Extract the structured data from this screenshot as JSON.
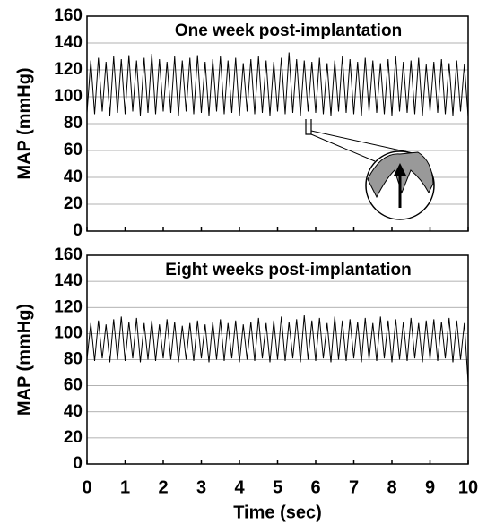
{
  "chart_data": [
    {
      "type": "line",
      "title": "One week post-implantation",
      "ylabel": "MAP (mmHg)",
      "xlim": [
        0,
        10
      ],
      "xticks": [
        0,
        1,
        2,
        3,
        4,
        5,
        6,
        7,
        8,
        9,
        10
      ],
      "ylim": [
        0,
        160
      ],
      "yticks": [
        0,
        20,
        40,
        60,
        80,
        100,
        120,
        140,
        160
      ],
      "grid": true,
      "x": [
        0,
        0.1,
        0.2,
        0.3,
        0.4,
        0.5,
        0.6,
        0.7,
        0.8,
        0.9,
        1,
        1.1,
        1.2,
        1.3,
        1.4,
        1.5,
        1.6,
        1.7,
        1.8,
        1.9,
        2,
        2.1,
        2.2,
        2.3,
        2.4,
        2.5,
        2.6,
        2.7,
        2.8,
        2.9,
        3,
        3.1,
        3.2,
        3.3,
        3.4,
        3.5,
        3.6,
        3.7,
        3.8,
        3.9,
        4,
        4.1,
        4.2,
        4.3,
        4.4,
        4.5,
        4.6,
        4.7,
        4.8,
        4.9,
        5,
        5.1,
        5.2,
        5.3,
        5.4,
        5.5,
        5.6,
        5.7,
        5.8,
        5.9,
        6,
        6.1,
        6.2,
        6.3,
        6.4,
        6.5,
        6.6,
        6.7,
        6.8,
        6.9,
        7,
        7.1,
        7.2,
        7.3,
        7.4,
        7.5,
        7.6,
        7.7,
        7.8,
        7.9,
        8,
        8.1,
        8.2,
        8.3,
        8.4,
        8.5,
        8.6,
        8.7,
        8.8,
        8.9,
        9,
        9.1,
        9.2,
        9.3,
        9.4,
        9.5,
        9.6,
        9.7,
        9.8,
        9.9,
        10
      ],
      "series": [
        {
          "color": "#000000",
          "values": [
            88,
            127,
            87,
            129,
            89,
            126,
            86,
            130,
            88,
            128,
            87,
            131,
            89,
            127,
            86,
            129,
            88,
            132,
            87,
            128,
            89,
            126,
            88,
            130,
            86,
            127,
            89,
            129,
            87,
            131,
            88,
            126,
            86,
            128,
            89,
            130,
            87,
            127,
            88,
            129,
            86,
            125,
            89,
            128,
            87,
            130,
            88,
            127,
            86,
            126,
            89,
            129,
            87,
            133,
            88,
            128,
            86,
            127,
            89,
            126,
            88,
            129,
            87,
            125,
            86,
            127,
            89,
            130,
            88,
            128,
            87,
            126,
            86,
            129,
            89,
            127,
            88,
            125,
            87,
            128,
            86,
            130,
            89,
            126,
            88,
            127,
            87,
            129,
            86,
            124,
            89,
            126,
            88,
            128,
            87,
            125,
            86,
            127,
            89,
            124,
            85
          ]
        }
      ]
    },
    {
      "type": "line",
      "title": "Eight weeks post-implantation",
      "ylabel": "MAP (mmHg)",
      "xlabel": "Time (sec)",
      "xlim": [
        0,
        10
      ],
      "xticks": [
        0,
        1,
        2,
        3,
        4,
        5,
        6,
        7,
        8,
        9,
        10
      ],
      "ylim": [
        0,
        160
      ],
      "yticks": [
        0,
        20,
        40,
        60,
        80,
        100,
        120,
        140,
        160
      ],
      "grid": true,
      "x": [
        0,
        0.1,
        0.2,
        0.3,
        0.4,
        0.5,
        0.6,
        0.7,
        0.8,
        0.9,
        1,
        1.1,
        1.2,
        1.3,
        1.4,
        1.5,
        1.6,
        1.7,
        1.8,
        1.9,
        2,
        2.1,
        2.2,
        2.3,
        2.4,
        2.5,
        2.6,
        2.7,
        2.8,
        2.9,
        3,
        3.1,
        3.2,
        3.3,
        3.4,
        3.5,
        3.6,
        3.7,
        3.8,
        3.9,
        4,
        4.1,
        4.2,
        4.3,
        4.4,
        4.5,
        4.6,
        4.7,
        4.8,
        4.9,
        5,
        5.1,
        5.2,
        5.3,
        5.4,
        5.5,
        5.6,
        5.7,
        5.8,
        5.9,
        6,
        6.1,
        6.2,
        6.3,
        6.4,
        6.5,
        6.6,
        6.7,
        6.8,
        6.9,
        7,
        7.1,
        7.2,
        7.3,
        7.4,
        7.5,
        7.6,
        7.7,
        7.8,
        7.9,
        8,
        8.1,
        8.2,
        8.3,
        8.4,
        8.5,
        8.6,
        8.7,
        8.8,
        8.9,
        9,
        9.1,
        9.2,
        9.3,
        9.4,
        9.5,
        9.6,
        9.7,
        9.8,
        9.9,
        10
      ],
      "series": [
        {
          "color": "#000000",
          "values": [
            80,
            108,
            79,
            110,
            81,
            107,
            78,
            111,
            80,
            113,
            79,
            109,
            81,
            112,
            78,
            108,
            80,
            110,
            79,
            107,
            81,
            111,
            80,
            109,
            78,
            106,
            80,
            108,
            79,
            110,
            81,
            107,
            78,
            109,
            80,
            111,
            79,
            108,
            81,
            110,
            78,
            107,
            80,
            109,
            79,
            112,
            81,
            108,
            78,
            110,
            80,
            113,
            79,
            109,
            81,
            111,
            78,
            114,
            80,
            110,
            79,
            112,
            81,
            108,
            78,
            113,
            80,
            110,
            79,
            111,
            81,
            109,
            78,
            112,
            80,
            108,
            79,
            113,
            81,
            110,
            78,
            111,
            80,
            109,
            79,
            112,
            81,
            108,
            78,
            110,
            80,
            111,
            79,
            109,
            81,
            112,
            78,
            110,
            80,
            108,
            62
          ]
        }
      ]
    }
  ]
}
